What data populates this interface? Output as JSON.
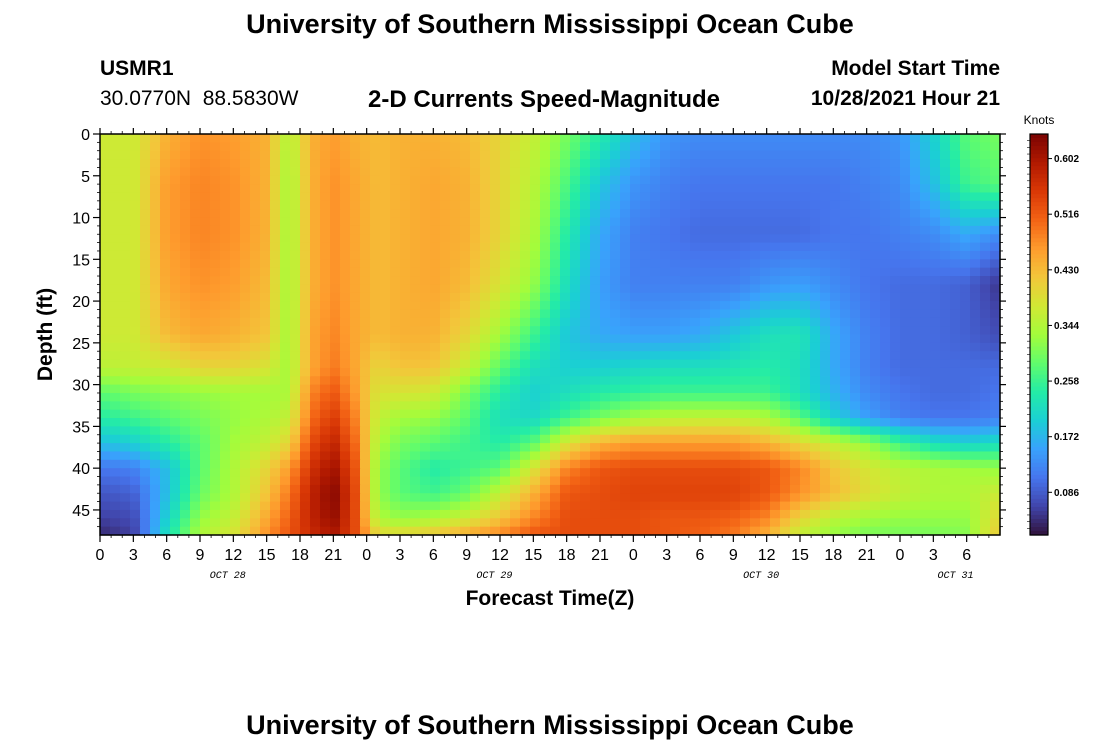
{
  "header": {
    "title": "University of Southern Mississippi Ocean Cube",
    "station": "USMR1",
    "coordinates": "30.0770N  88.5830W",
    "subtitle": "2-D Currents Speed-Magnitude",
    "model_start_label": "Model Start Time",
    "model_start_value": "10/28/2021 Hour 21"
  },
  "footer": {
    "title": "University of Southern Mississippi Ocean Cube"
  },
  "colors": {
    "background": "#ffffff",
    "text": "#000000",
    "colormap": [
      "#30123b",
      "#4145ab",
      "#4675ed",
      "#39a2fc",
      "#1bcfd4",
      "#24eca6",
      "#61fc6c",
      "#a4fc3b",
      "#d1e834",
      "#f3c63a",
      "#fe9b2d",
      "#f36315",
      "#d93806",
      "#b11901",
      "#7a0402"
    ]
  },
  "chart_data": {
    "type": "heatmap",
    "title": "2-D Currents Speed-Magnitude",
    "xlabel": "Forecast Time(Z)",
    "ylabel": "Depth (ft)",
    "x_range_hours": [
      0,
      81
    ],
    "ylim": [
      0,
      48
    ],
    "y_ticks": [
      0,
      5,
      10,
      15,
      20,
      25,
      30,
      35,
      40,
      45
    ],
    "x_tick_labels": [
      "0",
      "3",
      "6",
      "9",
      "12",
      "15",
      "18",
      "21",
      "0",
      "3",
      "6",
      "9",
      "12",
      "15",
      "18",
      "21",
      "0",
      "3",
      "6",
      "9",
      "12",
      "15",
      "18",
      "21",
      "0",
      "3",
      "6"
    ],
    "date_labels": [
      {
        "label": "OCT 28",
        "hour": 11.5
      },
      {
        "label": "OCT 29",
        "hour": 35.5
      },
      {
        "label": "OCT 30",
        "hour": 59.5
      },
      {
        "label": "OCT 31",
        "hour": 77
      }
    ],
    "colorbar": {
      "unit": "Knots",
      "range": [
        0.02,
        0.64
      ],
      "ticks": [
        "0.602",
        "0.516",
        "0.430",
        "0.344",
        "0.258",
        "0.172",
        "0.086"
      ]
    },
    "depths": [
      0,
      6,
      12,
      18,
      24,
      28,
      31,
      34,
      37,
      40,
      43,
      46,
      48
    ],
    "hours": [
      0,
      3,
      6,
      9,
      12,
      15,
      17,
      19,
      21,
      23,
      25,
      27,
      30,
      33,
      36,
      39,
      42,
      45,
      48,
      51,
      54,
      57,
      60,
      63,
      66,
      69,
      72,
      75,
      78,
      81
    ],
    "speeds": [
      [
        0.37,
        0.37,
        0.44,
        0.47,
        0.46,
        0.44,
        0.34,
        0.44,
        0.46,
        0.44,
        0.43,
        0.44,
        0.44,
        0.43,
        0.4,
        0.36,
        0.3,
        0.24,
        0.18,
        0.14,
        0.13,
        0.13,
        0.13,
        0.13,
        0.13,
        0.13,
        0.14,
        0.2,
        0.28,
        0.3
      ],
      [
        0.37,
        0.37,
        0.46,
        0.48,
        0.47,
        0.44,
        0.33,
        0.44,
        0.47,
        0.45,
        0.43,
        0.44,
        0.45,
        0.44,
        0.4,
        0.35,
        0.27,
        0.19,
        0.14,
        0.12,
        0.11,
        0.11,
        0.11,
        0.11,
        0.11,
        0.12,
        0.13,
        0.18,
        0.26,
        0.28
      ],
      [
        0.37,
        0.37,
        0.46,
        0.48,
        0.47,
        0.44,
        0.33,
        0.44,
        0.47,
        0.45,
        0.43,
        0.44,
        0.45,
        0.44,
        0.4,
        0.34,
        0.24,
        0.16,
        0.12,
        0.11,
        0.1,
        0.1,
        0.1,
        0.1,
        0.11,
        0.11,
        0.12,
        0.13,
        0.16,
        0.13
      ],
      [
        0.37,
        0.37,
        0.45,
        0.47,
        0.46,
        0.43,
        0.33,
        0.44,
        0.47,
        0.45,
        0.43,
        0.44,
        0.45,
        0.43,
        0.38,
        0.32,
        0.22,
        0.15,
        0.12,
        0.12,
        0.12,
        0.12,
        0.14,
        0.15,
        0.13,
        0.11,
        0.1,
        0.1,
        0.09,
        0.05
      ],
      [
        0.37,
        0.37,
        0.43,
        0.45,
        0.44,
        0.42,
        0.33,
        0.45,
        0.48,
        0.45,
        0.43,
        0.44,
        0.44,
        0.4,
        0.33,
        0.26,
        0.19,
        0.16,
        0.15,
        0.15,
        0.16,
        0.19,
        0.22,
        0.23,
        0.16,
        0.12,
        0.1,
        0.1,
        0.09,
        0.07
      ],
      [
        0.35,
        0.36,
        0.37,
        0.4,
        0.4,
        0.38,
        0.33,
        0.45,
        0.49,
        0.45,
        0.4,
        0.42,
        0.42,
        0.36,
        0.28,
        0.22,
        0.2,
        0.2,
        0.21,
        0.22,
        0.22,
        0.23,
        0.24,
        0.22,
        0.16,
        0.12,
        0.1,
        0.1,
        0.1,
        0.1
      ],
      [
        0.28,
        0.3,
        0.31,
        0.32,
        0.33,
        0.33,
        0.34,
        0.48,
        0.52,
        0.46,
        0.38,
        0.38,
        0.37,
        0.3,
        0.24,
        0.2,
        0.22,
        0.24,
        0.25,
        0.26,
        0.26,
        0.26,
        0.26,
        0.22,
        0.17,
        0.13,
        0.11,
        0.1,
        0.1,
        0.11
      ],
      [
        0.24,
        0.26,
        0.28,
        0.3,
        0.32,
        0.34,
        0.36,
        0.5,
        0.55,
        0.48,
        0.36,
        0.33,
        0.32,
        0.28,
        0.22,
        0.21,
        0.26,
        0.3,
        0.33,
        0.35,
        0.36,
        0.36,
        0.34,
        0.28,
        0.2,
        0.15,
        0.12,
        0.11,
        0.11,
        0.12
      ],
      [
        0.18,
        0.2,
        0.24,
        0.28,
        0.33,
        0.36,
        0.4,
        0.53,
        0.58,
        0.5,
        0.34,
        0.3,
        0.28,
        0.26,
        0.24,
        0.28,
        0.38,
        0.44,
        0.46,
        0.46,
        0.46,
        0.46,
        0.44,
        0.4,
        0.36,
        0.32,
        0.26,
        0.22,
        0.2,
        0.22
      ],
      [
        0.11,
        0.12,
        0.18,
        0.28,
        0.34,
        0.4,
        0.46,
        0.56,
        0.61,
        0.52,
        0.32,
        0.28,
        0.24,
        0.26,
        0.28,
        0.38,
        0.48,
        0.52,
        0.53,
        0.53,
        0.53,
        0.53,
        0.52,
        0.48,
        0.42,
        0.38,
        0.35,
        0.34,
        0.33,
        0.32
      ],
      [
        0.08,
        0.09,
        0.18,
        0.29,
        0.34,
        0.42,
        0.49,
        0.58,
        0.63,
        0.53,
        0.32,
        0.28,
        0.26,
        0.29,
        0.36,
        0.44,
        0.52,
        0.53,
        0.54,
        0.54,
        0.54,
        0.54,
        0.52,
        0.47,
        0.43,
        0.39,
        0.36,
        0.34,
        0.34,
        0.37
      ],
      [
        0.06,
        0.07,
        0.2,
        0.32,
        0.36,
        0.45,
        0.51,
        0.58,
        0.62,
        0.53,
        0.34,
        0.32,
        0.34,
        0.37,
        0.42,
        0.48,
        0.53,
        0.53,
        0.53,
        0.52,
        0.52,
        0.51,
        0.48,
        0.4,
        0.35,
        0.33,
        0.32,
        0.32,
        0.32,
        0.4
      ],
      [
        0.04,
        0.06,
        0.22,
        0.34,
        0.38,
        0.47,
        0.52,
        0.57,
        0.6,
        0.53,
        0.4,
        0.4,
        0.42,
        0.45,
        0.48,
        0.52,
        0.53,
        0.53,
        0.53,
        0.52,
        0.51,
        0.49,
        0.44,
        0.36,
        0.32,
        0.3,
        0.3,
        0.3,
        0.31,
        0.42
      ]
    ]
  }
}
